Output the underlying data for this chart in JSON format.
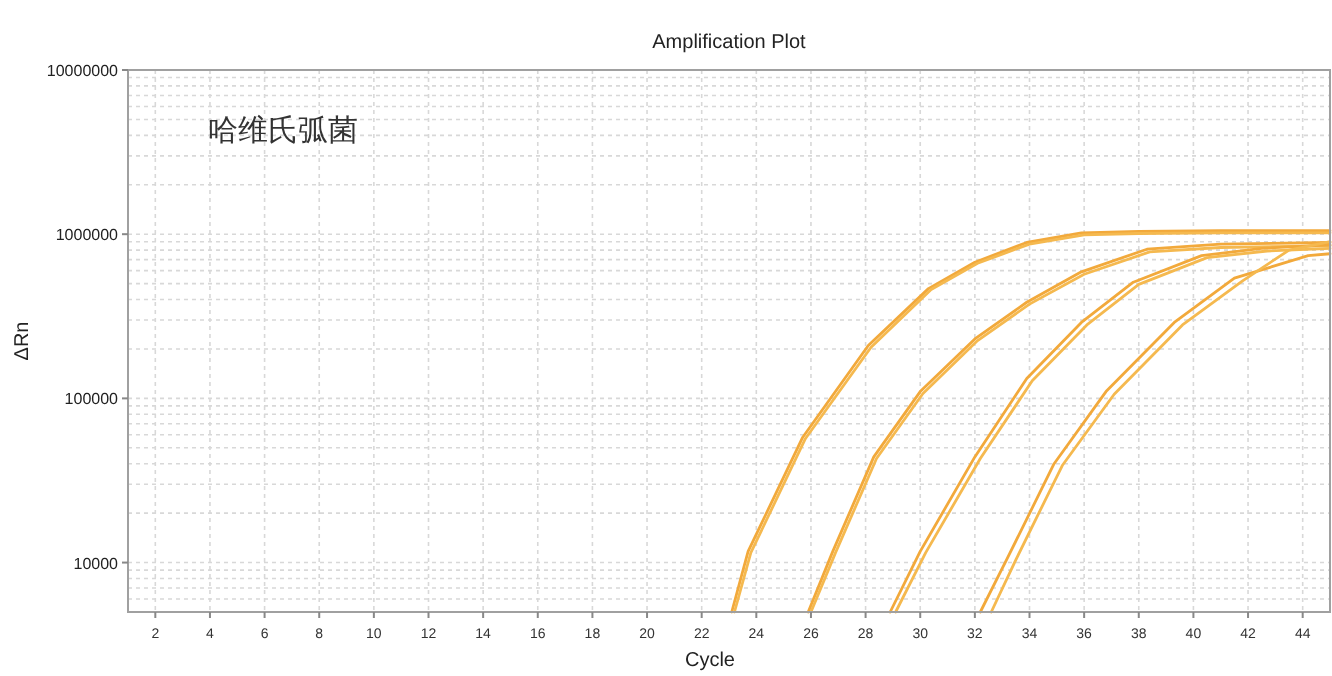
{
  "chart_data": {
    "type": "line",
    "title": "Amplification Plot",
    "xlabel": "Cycle",
    "ylabel": "ΔRn",
    "annotations": [
      "哈维氏弧菌"
    ],
    "log": "y",
    "grid": true,
    "marker": "none",
    "line_style": "solid",
    "xlim": [
      1,
      45
    ],
    "xticks": [
      2,
      4,
      6,
      8,
      10,
      12,
      14,
      16,
      18,
      20,
      22,
      24,
      26,
      28,
      30,
      32,
      34,
      36,
      38,
      40,
      42,
      44
    ],
    "ylim": [
      5000,
      10000000
    ],
    "yticks": [
      10000,
      100000,
      1000000,
      10000000
    ],
    "series": [
      {
        "color": "#f2a93b",
        "x": [
          23.1,
          23.7,
          25.7,
          28.1,
          30.3,
          32,
          33.9,
          35.9,
          38,
          41,
          45
        ],
        "values": [
          5000,
          11700,
          58000,
          210000,
          466000,
          675000,
          890000,
          1020000,
          1040000,
          1050000,
          1050000
        ]
      },
      {
        "color": "#f5b94f",
        "x": [
          23.2,
          23.8,
          25.8,
          28.2,
          30.4,
          32.1,
          34,
          36,
          38,
          41,
          45
        ],
        "values": [
          5000,
          11500,
          57000,
          205000,
          460000,
          665000,
          870000,
          990000,
          1010000,
          1020000,
          1020000
        ]
      },
      {
        "color": "#f2a93b",
        "x": [
          25.9,
          26.8,
          28.3,
          30,
          32,
          33.9,
          35.9,
          38.3,
          41,
          45
        ],
        "values": [
          5000,
          11700,
          44000,
          110000,
          230000,
          385000,
          590000,
          810000,
          870000,
          890000
        ]
      },
      {
        "color": "#f5b94f",
        "x": [
          26,
          26.9,
          28.4,
          30.1,
          32.1,
          34,
          36,
          38.4,
          41,
          45
        ],
        "values": [
          5000,
          11500,
          43000,
          107000,
          225000,
          375000,
          570000,
          780000,
          830000,
          850000
        ]
      },
      {
        "color": "#f2a93b",
        "x": [
          28.9,
          30,
          32,
          33.9,
          35.9,
          37.8,
          40.3,
          42.5,
          45
        ],
        "values": [
          5000,
          11700,
          44000,
          132000,
          290000,
          510000,
          740000,
          820000,
          860000
        ]
      },
      {
        "color": "#f5b94f",
        "x": [
          29.1,
          30.2,
          32.2,
          34.1,
          36.1,
          38,
          40.5,
          42.7,
          45
        ],
        "values": [
          5000,
          11500,
          43000,
          128000,
          280000,
          495000,
          720000,
          790000,
          820000
        ]
      },
      {
        "color": "#f2a93b",
        "x": [
          32.2,
          33.2,
          34.9,
          36.8,
          39.3,
          41.5,
          44.2,
          45
        ],
        "values": [
          5000,
          10700,
          40000,
          110000,
          290000,
          540000,
          740000,
          760000
        ]
      },
      {
        "color": "#f5b94f",
        "x": [
          32.6,
          33.5,
          35.2,
          37.1,
          39.6,
          41.8,
          43.5,
          45
        ],
        "values": [
          5000,
          10400,
          39000,
          106000,
          280000,
          520000,
          800000,
          900000
        ]
      }
    ]
  }
}
